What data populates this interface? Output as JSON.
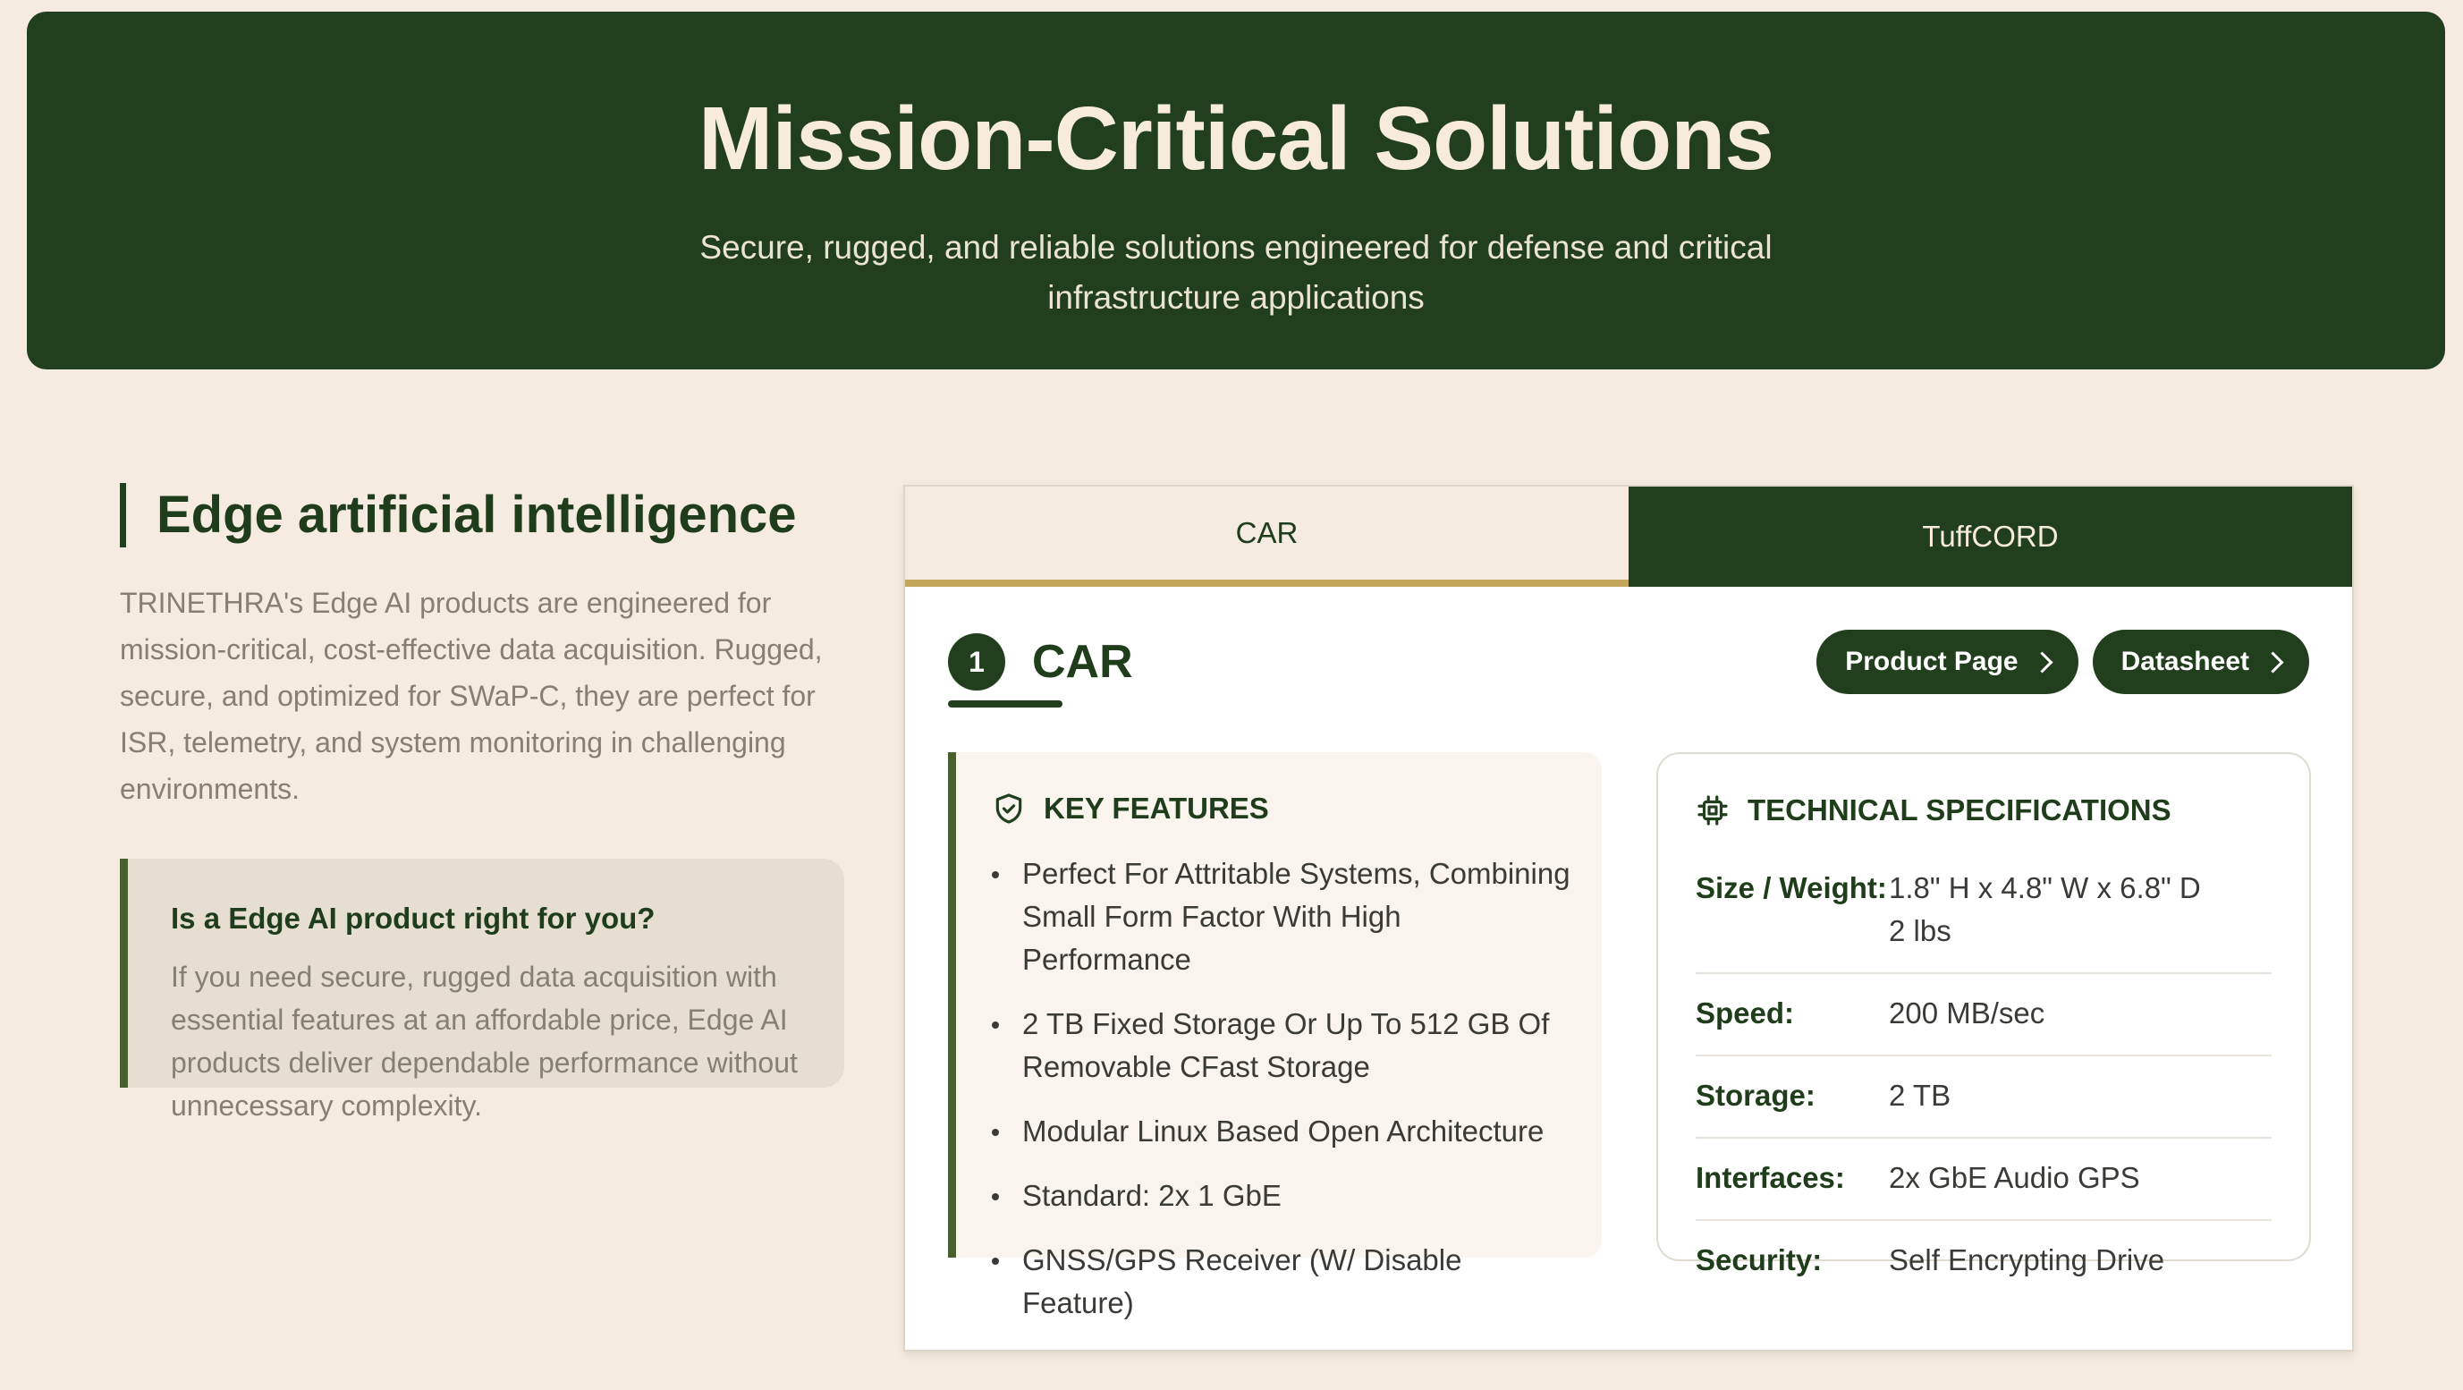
{
  "hero": {
    "title": "Mission-Critical Solutions",
    "subtitle": "Secure, rugged, and reliable solutions engineered for defense and critical infrastructure applications"
  },
  "intro": {
    "title": "Edge artificial intelligence",
    "description": "TRINETHRA's Edge AI products are engineered for mission-critical, cost-effective data acquisition. Rugged, secure, and optimized for SWaP-C, they are perfect for ISR, telemetry, and system monitoring in challenging environments.",
    "callout_title": "Is a Edge AI product right for you?",
    "callout_text": "If you need secure, rugged data acquisition with essential features at an affordable price, Edge AI products deliver dependable performance without unnecessary complexity."
  },
  "tabs": [
    {
      "label": "CAR",
      "active": true
    },
    {
      "label": "TuffCORD",
      "active": false
    }
  ],
  "product": {
    "number": "1",
    "name": "CAR",
    "buttons": {
      "product_page": "Product Page",
      "datasheet": "Datasheet"
    },
    "features_title": "KEY FEATURES",
    "features": [
      "Perfect For Attritable Systems, Combining Small Form Factor With High Performance",
      "2 TB Fixed Storage Or Up To 512 GB Of Removable CFast Storage",
      "Modular Linux Based Open Architecture",
      "Standard: 2x 1 GbE",
      "GNSS/GPS Receiver (W/ Disable Feature)"
    ],
    "specs_title": "TECHNICAL SPECIFICATIONS",
    "specs": [
      {
        "key": "Size / Weight:",
        "value_line1": "1.8\" H x 4.8\" W x 6.8\" D",
        "value_line2": "2 lbs"
      },
      {
        "key": "Speed:",
        "value_line1": "200 MB/sec"
      },
      {
        "key": "Storage:",
        "value_line1": "2 TB"
      },
      {
        "key": "Interfaces:",
        "value_line1": "2x GbE Audio GPS"
      },
      {
        "key": "Security:",
        "value_line1": "Self Encrypting Drive"
      }
    ]
  },
  "colors": {
    "primary": "#213f1c",
    "accent": "#c4a65a",
    "background": "#f5ebe0"
  },
  "icons": {
    "features": "shield-check-icon",
    "specs": "chip-icon",
    "button": "chevron-right-icon"
  }
}
